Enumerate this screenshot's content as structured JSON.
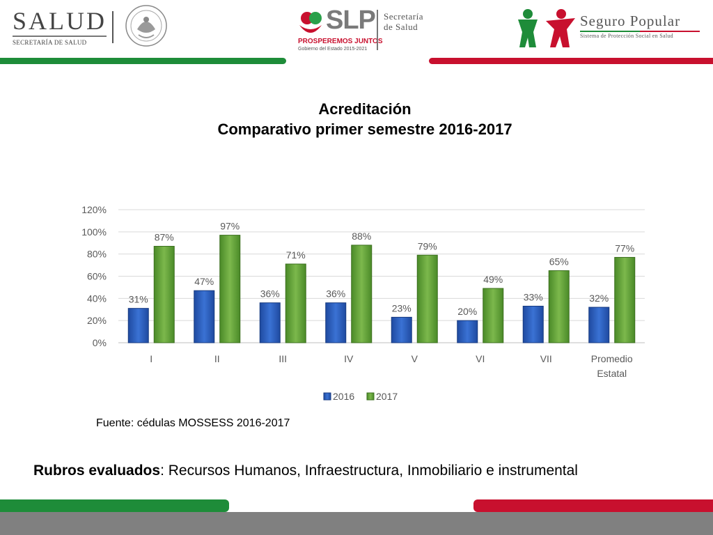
{
  "header": {
    "salud_word": "SALUD",
    "salud_sub": "SECRETARÍA DE SALUD",
    "slp_word": "SLP",
    "slp_slogan": "PROSPEREMOS JUNTOS",
    "slp_gov": "Gobierno del Estado 2015-2021",
    "secretaria_line1": "Secretaría",
    "secretaria_line2": "de Salud",
    "seguro_popular": "Seguro Popular",
    "seguro_popular_sub": "Sistema de Protección Social en Salud"
  },
  "title_line1": "Acreditación",
  "title_line2": "Comparativo primer semestre 2016-2017",
  "source": "Fuente: cédulas MOSSESS 2016-2017",
  "rubros_label": "Rubros evaluados",
  "rubros_text": ": Recursos Humanos, Infraestructura, Inmobiliario e instrumental",
  "colors": {
    "green": "#1e8c39",
    "red": "#c8102e",
    "series_2016": "#2e5fb8",
    "series_2017": "#6aa33d"
  },
  "chart_data": {
    "type": "bar",
    "categories": [
      "I",
      "II",
      "III",
      "IV",
      "V",
      "VI",
      "VII",
      "Promedio Estatal"
    ],
    "series": [
      {
        "name": "2016",
        "values": [
          31,
          47,
          36,
          36,
          23,
          20,
          33,
          32
        ],
        "labels": [
          "31%",
          "47%",
          "36%",
          "36%",
          "23%",
          "20%",
          "33%",
          "32%"
        ]
      },
      {
        "name": "2017",
        "values": [
          87,
          97,
          71,
          88,
          79,
          49,
          65,
          77
        ],
        "labels": [
          "87%",
          "97%",
          "71%",
          "88%",
          "79%",
          "49%",
          "65%",
          "77%"
        ]
      }
    ],
    "ylim": [
      0,
      120
    ],
    "yticks": [
      "0%",
      "20%",
      "40%",
      "60%",
      "80%",
      "100%",
      "120%"
    ],
    "grid": true,
    "legend": "bottom"
  }
}
